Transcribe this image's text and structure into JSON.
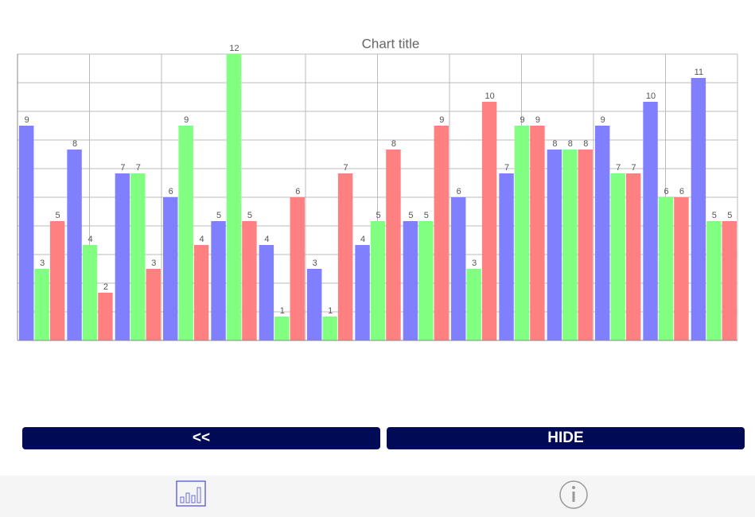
{
  "chart_data": {
    "type": "bar",
    "title": "Chart title",
    "categories": [
      null,
      null,
      null,
      null,
      null,
      null,
      null,
      null,
      null,
      null,
      null,
      null,
      null,
      null,
      null
    ],
    "series": [
      {
        "color": "#8080ff",
        "values": [
          9,
          8,
          7,
          6,
          5,
          4,
          3,
          4,
          5,
          6,
          7,
          8,
          9,
          10,
          11
        ]
      },
      {
        "color": "#80ff80",
        "values": [
          3,
          4,
          7,
          9,
          12,
          1,
          1,
          5,
          5,
          3,
          9,
          8,
          7,
          6,
          5
        ]
      },
      {
        "color": "#ff8080",
        "values": [
          5,
          2,
          3,
          4,
          5,
          6,
          7,
          8,
          9,
          10,
          9,
          8,
          7,
          6,
          5
        ]
      }
    ],
    "ylim": [
      0,
      12
    ],
    "yticks": [
      0,
      1.2,
      2.4,
      3.6,
      4.8,
      6,
      7.2,
      8.4,
      9.6,
      10.8,
      12
    ],
    "grid": true
  },
  "buttons": {
    "back": "<<",
    "hide": "HIDE"
  }
}
